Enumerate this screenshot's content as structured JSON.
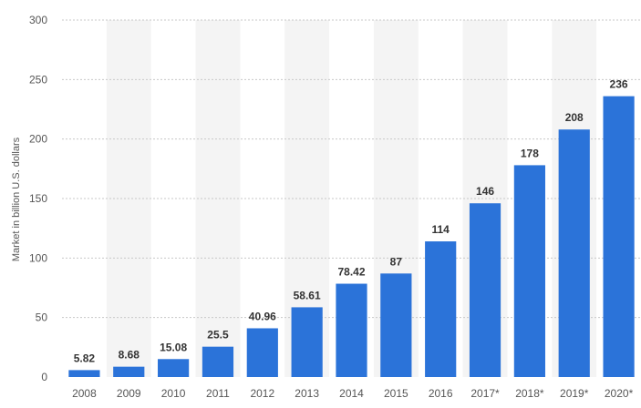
{
  "chart_data": {
    "type": "bar",
    "title": "",
    "xlabel": "",
    "ylabel": "Market in billion U.S. dollars",
    "categories": [
      "2008",
      "2009",
      "2010",
      "2011",
      "2012",
      "2013",
      "2014",
      "2015",
      "2016",
      "2017*",
      "2018*",
      "2019*",
      "2020*"
    ],
    "values": [
      5.82,
      8.68,
      15.08,
      25.5,
      40.96,
      58.61,
      78.42,
      87,
      114,
      146,
      178,
      208,
      236
    ],
    "value_labels": [
      "5.82",
      "8.68",
      "15.08",
      "25.5",
      "40.96",
      "58.61",
      "78.42",
      "87",
      "114",
      "146",
      "178",
      "208",
      "236"
    ],
    "ylim": [
      0,
      300
    ],
    "yticks": [
      0,
      50,
      100,
      150,
      200,
      250,
      300
    ],
    "grid": true,
    "bar_color": "#2b73d9",
    "alternate_band_color": "#f4f4f4"
  }
}
